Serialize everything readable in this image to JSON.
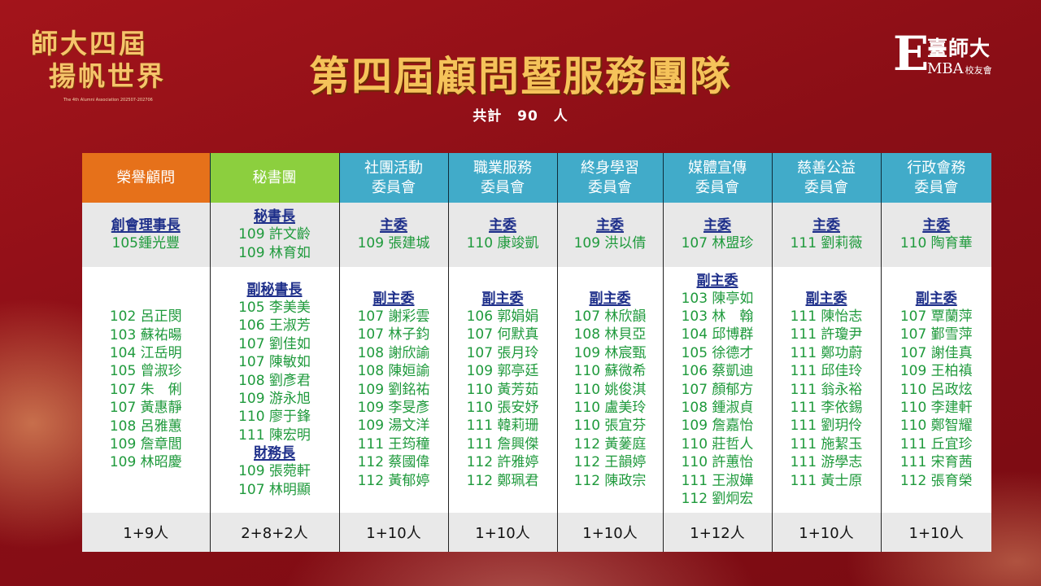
{
  "logo_left": {
    "line1": "師大四屆",
    "line2": "揚帆世界",
    "subline": "The 4th Alumni Association 202507-202706"
  },
  "title": "第四屆顧問暨服務團隊",
  "total": {
    "label": "共計",
    "count": "90",
    "unit": "人"
  },
  "logo_right": {
    "mark": "E",
    "name": "臺師大",
    "mba": "MBA",
    "suffix": "校友會"
  },
  "columns": [
    {
      "header": [
        "榮譽顧問"
      ],
      "header_color": "#e6711a",
      "chair_role": "創會理事長",
      "chair_names": [
        "105鍾光豐"
      ],
      "groups": [
        {
          "role": "",
          "names": [
            "102 呂正閔",
            "103 蘇祐暘",
            "104 江岳明",
            "105 曾淑珍",
            "107 朱　俐",
            "107 黃惠靜",
            "108 呂雅蕙",
            "109 詹章閭",
            "109 林昭慶"
          ]
        }
      ],
      "total": "1+9人"
    },
    {
      "header": [
        "秘書團"
      ],
      "header_color": "#8ccf3e",
      "chair_role": "秘書長",
      "chair_names": [
        "109 許文齡",
        "109 林育如"
      ],
      "groups": [
        {
          "role": "副秘書長",
          "names": [
            "105 李美美",
            "106 王淑芳",
            "107 劉佳如",
            "107 陳敏如",
            "108 劉彥君",
            "109 游永旭",
            "110 廖于鋒",
            "111 陳宏明"
          ]
        },
        {
          "role": "財務長",
          "names": [
            "109 張菀軒",
            "107 林明顯"
          ]
        }
      ],
      "total": "2+8+2人"
    },
    {
      "header": [
        "社團活動",
        "委員會"
      ],
      "header_color": "#41abc9",
      "chair_role": "主委",
      "chair_names": [
        "109 張建城"
      ],
      "groups": [
        {
          "role": "副主委",
          "names": [
            "107 謝彩雲",
            "107 林子鈞",
            "108 謝欣諭",
            "108 陳姮諭",
            "109 劉銘祐",
            "109 李旻彥",
            "109 湯文洋",
            "111 王筠穜",
            "112 蔡國偉",
            "112 黃郁婷"
          ]
        }
      ],
      "total": "1+10人"
    },
    {
      "header": [
        "職業服務",
        "委員會"
      ],
      "header_color": "#41abc9",
      "chair_role": "主委",
      "chair_names": [
        "110 康竣凱"
      ],
      "groups": [
        {
          "role": "副主委",
          "names": [
            "106 郭娟娟",
            "107 何默真",
            "107 張月玲",
            "109 郭亭廷",
            "110 黃芳茹",
            "110 張安妤",
            "111 韓莉珊",
            "111 詹興傑",
            "112 許雅婷",
            "112 鄭珮君"
          ]
        }
      ],
      "total": "1+10人"
    },
    {
      "header": [
        "終身學習",
        "委員會"
      ],
      "header_color": "#41abc9",
      "chair_role": "主委",
      "chair_names": [
        "109 洪以倩"
      ],
      "groups": [
        {
          "role": "副主委",
          "names": [
            "107 林欣韻",
            "108 林貝亞",
            "109 林宸甄",
            "110 蘇微希",
            "110 姚俊淇",
            "110 盧美玲",
            "110 張宜芬",
            "112 黃蓌庭",
            "112 王韻婷",
            "112 陳政宗"
          ]
        }
      ],
      "total": "1+10人"
    },
    {
      "header": [
        "媒體宣傳",
        "委員會"
      ],
      "header_color": "#41abc9",
      "chair_role": "主委",
      "chair_names": [
        "107 林盟珍"
      ],
      "groups": [
        {
          "role": "副主委",
          "names": [
            "103 陳亭如",
            "103 林　翰",
            "104 邱博群",
            "105 徐德才",
            "106 蔡凱迪",
            "107 顏郁方",
            "108 鍾淑貞",
            "109 詹嘉怡",
            "110 莊哲人",
            "110 許蕙怡",
            "111 王淑嬅",
            "112 劉炯宏"
          ]
        }
      ],
      "total": "1+12人"
    },
    {
      "header": [
        "慈善公益",
        "委員會"
      ],
      "header_color": "#41abc9",
      "chair_role": "主委",
      "chair_names": [
        "111 劉莉薇"
      ],
      "groups": [
        {
          "role": "副主委",
          "names": [
            "111 陳怡志",
            "111 許瓊尹",
            "111 鄭功蔚",
            "111 邱佳玲",
            "111 翁永裕",
            "111 李依錫",
            "111 劉玥伶",
            "111 施絜玉",
            "111 游學志",
            "111 黃士原"
          ]
        }
      ],
      "total": "1+10人"
    },
    {
      "header": [
        "行政會務",
        "委員會"
      ],
      "header_color": "#41abc9",
      "chair_role": "主委",
      "chair_names": [
        "110 陶育華"
      ],
      "groups": [
        {
          "role": "副主委",
          "names": [
            "107 覃蘭萍",
            "107 鄞雪萍",
            "107 謝佳真",
            "109 王柏禛",
            "110 呂政炫",
            "110 李建軒",
            "110 鄭智耀",
            "111 丘宜珍",
            "111 宋育茜",
            "112 張育榮"
          ]
        }
      ],
      "total": "1+10人"
    }
  ]
}
